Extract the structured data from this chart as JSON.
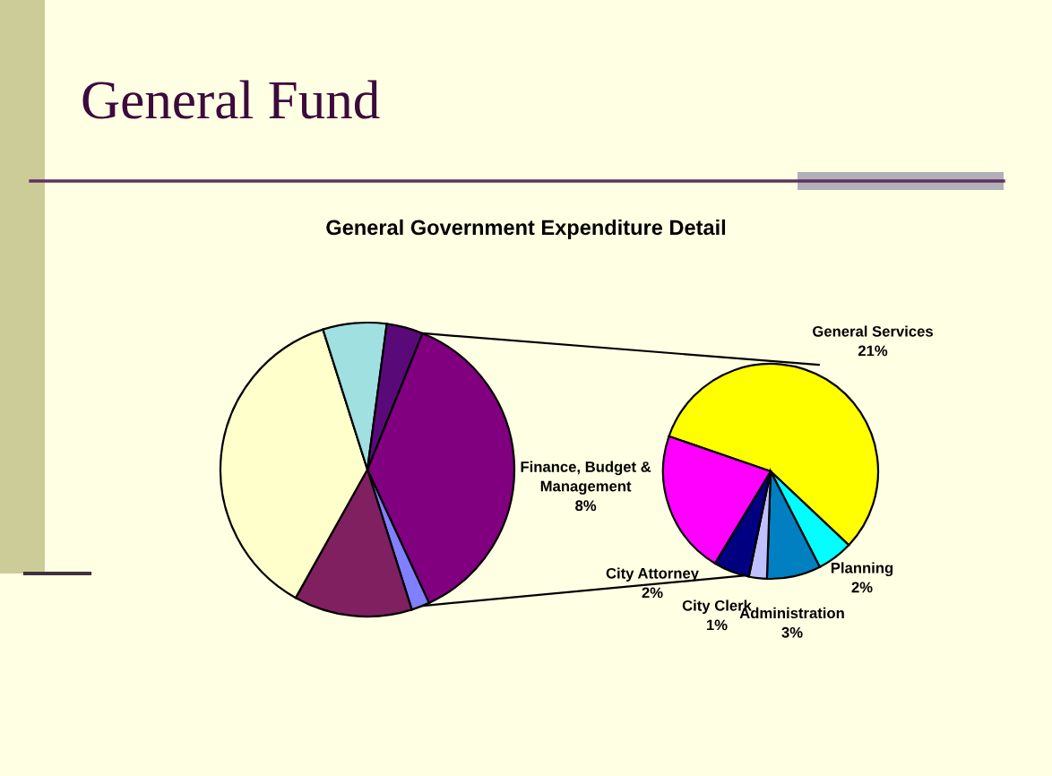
{
  "chart_data": [
    {
      "type": "pie",
      "title": "General Fund",
      "subtitle": "General Government Expenditure Detail",
      "categories": [
        null,
        null,
        null,
        null,
        null,
        null
      ],
      "values": [
        37,
        2,
        13,
        37,
        7,
        4
      ],
      "colors": [
        "#800080",
        "#8080ff",
        "#802060",
        "#ffffcc",
        "#a0e0e0",
        "#5a0a78"
      ]
    },
    {
      "type": "pie",
      "categories": [
        "General Services",
        "Planning",
        "Administration",
        "City Clerk",
        "City Attorney",
        "Finance, Budget &\nManagement"
      ],
      "values": [
        21,
        2,
        3,
        1,
        2,
        8
      ],
      "value_labels": [
        "21%",
        "2%",
        "3%",
        "1%",
        "2%",
        "8%"
      ],
      "colors": [
        "#ffff00",
        "#00ffff",
        "#0080c0",
        "#c0c0ff",
        "#000080",
        "#ff00ff"
      ]
    }
  ]
}
